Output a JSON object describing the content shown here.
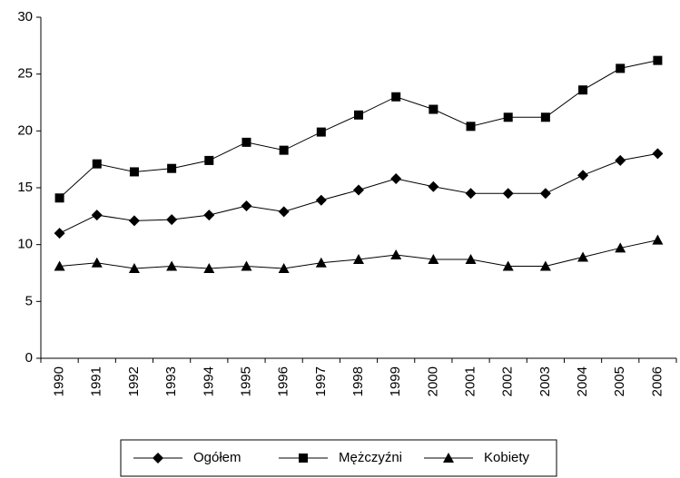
{
  "chart_data": {
    "type": "line",
    "categories": [
      "1990",
      "1991",
      "1992",
      "1993",
      "1994",
      "1995",
      "1996",
      "1997",
      "1998",
      "1999",
      "2000",
      "2001",
      "2002",
      "2003",
      "2004",
      "2005",
      "2006"
    ],
    "series": [
      {
        "name": "Ogółem",
        "color": "#000000",
        "marker": "diamond",
        "values": [
          11.0,
          12.6,
          12.1,
          12.2,
          12.6,
          13.4,
          12.9,
          13.9,
          14.8,
          15.8,
          15.1,
          14.5,
          14.5,
          14.5,
          16.1,
          17.4,
          18.0
        ]
      },
      {
        "name": "Mężczyźni",
        "color": "#000000",
        "marker": "square",
        "values": [
          14.1,
          17.1,
          16.4,
          16.7,
          17.4,
          19.0,
          18.3,
          19.9,
          21.4,
          23.0,
          21.9,
          20.4,
          21.2,
          21.2,
          23.6,
          25.5,
          26.2
        ]
      },
      {
        "name": "Kobiety",
        "color": "#000000",
        "marker": "triangle",
        "values": [
          8.1,
          8.4,
          7.9,
          8.1,
          7.9,
          8.1,
          7.9,
          8.4,
          8.7,
          9.1,
          8.7,
          8.7,
          8.1,
          8.1,
          8.9,
          9.7,
          10.4
        ]
      }
    ],
    "ylim": [
      0,
      30
    ],
    "yticks": [
      0,
      5,
      10,
      15,
      20,
      25,
      30
    ],
    "grid": false,
    "legend": "bottom"
  }
}
